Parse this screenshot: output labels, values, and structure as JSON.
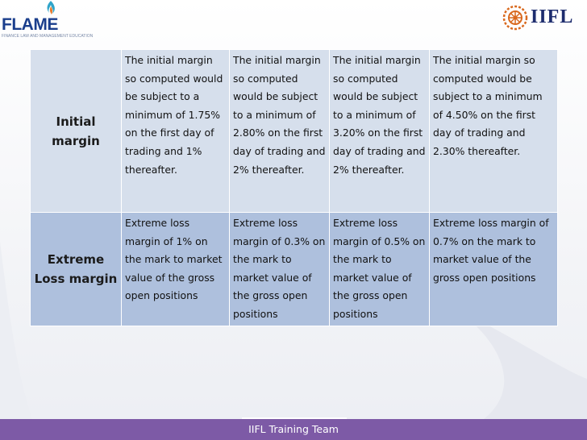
{
  "logos": {
    "left_brand": "FLAME",
    "left_tagline": "FINANCE LAW AND MANAGEMENT EDUCATION",
    "right_brand": "IIFL"
  },
  "table": {
    "rows": [
      {
        "header": "Initial margin",
        "cells": [
          "The initial margin so computed would be subject to a minimum of 1.75% on the first day of trading and 1% thereafter.",
          "The initial margin so computed would be subject to a minimum of 2.80% on the first day of trading and 2% thereafter.",
          "The initial margin so computed would be subject to a minimum of 3.20% on the first day of trading and 2% thereafter.",
          "The initial margin so computed would be subject to a minimum of 4.50% on the first day of trading and 2.30% thereafter."
        ]
      },
      {
        "header": "Extreme Loss margin",
        "cells": [
          "Extreme loss margin of 1% on the mark to market value of the gross open positions",
          "Extreme loss margin of 0.3% on the mark to market value of the gross open positions",
          "Extreme loss margin of 0.5% on the mark to market value of the gross open positions",
          "Extreme loss margin of 0.7% on the mark to market value of the gross open positions"
        ]
      }
    ]
  },
  "footer": {
    "text": "IIFL Training Team"
  },
  "colors": {
    "row1_fill": "#d6dfec",
    "row2_fill": "#aec0dd",
    "footer_bar": "#7d5aa6",
    "iifl_orange": "#d9691e",
    "flame_blue": "#1a3e8c"
  }
}
